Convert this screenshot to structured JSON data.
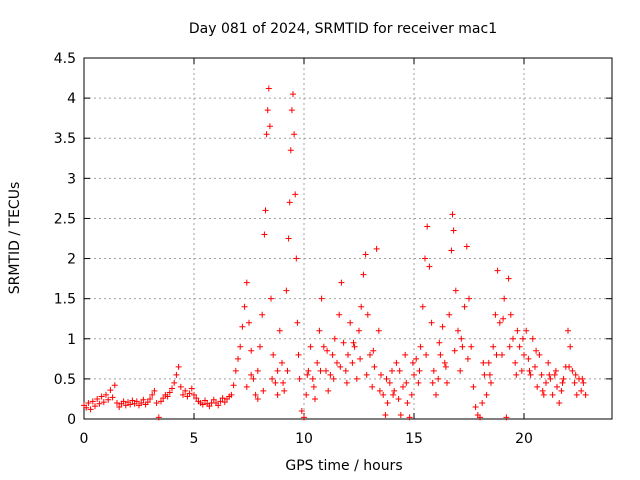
{
  "chart_data": {
    "type": "scatter",
    "title": "Day 081 of 2024, SRMTID for receiver mac1",
    "xlabel": "GPS time / hours",
    "ylabel": "SRMTID / TECUs",
    "xlim": [
      0,
      24
    ],
    "ylim": [
      0,
      4.5
    ],
    "x_ticks": [
      0,
      5,
      10,
      15,
      20
    ],
    "x_tick_labels": [
      "0",
      "5",
      "10",
      "15",
      "20"
    ],
    "y_ticks": [
      0,
      0.5,
      1,
      1.5,
      2,
      2.5,
      3,
      3.5,
      4,
      4.5
    ],
    "y_tick_labels": [
      "0",
      "0.5",
      "1",
      "1.5",
      "2",
      "2.5",
      "3",
      "3.5",
      "4",
      "4.5"
    ],
    "grid": true,
    "marker": "+",
    "series": [
      {
        "name": "SRMTID",
        "color": "#ff0000",
        "points": [
          [
            0.0,
            0.17
          ],
          [
            0.1,
            0.14
          ],
          [
            0.2,
            0.2
          ],
          [
            0.3,
            0.12
          ],
          [
            0.4,
            0.22
          ],
          [
            0.5,
            0.16
          ],
          [
            0.6,
            0.25
          ],
          [
            0.7,
            0.19
          ],
          [
            0.8,
            0.28
          ],
          [
            0.9,
            0.21
          ],
          [
            1.0,
            0.3
          ],
          [
            1.1,
            0.24
          ],
          [
            1.2,
            0.36
          ],
          [
            1.3,
            0.27
          ],
          [
            1.4,
            0.42
          ],
          [
            1.5,
            0.2
          ],
          [
            1.6,
            0.15
          ],
          [
            1.7,
            0.19
          ],
          [
            1.8,
            0.22
          ],
          [
            1.9,
            0.17
          ],
          [
            2.0,
            0.21
          ],
          [
            2.1,
            0.18
          ],
          [
            2.2,
            0.23
          ],
          [
            2.3,
            0.19
          ],
          [
            2.4,
            0.22
          ],
          [
            2.5,
            0.17
          ],
          [
            2.6,
            0.2
          ],
          [
            2.7,
            0.24
          ],
          [
            2.8,
            0.18
          ],
          [
            2.9,
            0.21
          ],
          [
            3.0,
            0.25
          ],
          [
            3.1,
            0.3
          ],
          [
            3.2,
            0.35
          ],
          [
            3.3,
            0.2
          ],
          [
            3.4,
            0.02
          ],
          [
            3.5,
            0.22
          ],
          [
            3.6,
            0.26
          ],
          [
            3.7,
            0.3
          ],
          [
            3.8,
            0.28
          ],
          [
            3.9,
            0.33
          ],
          [
            4.0,
            0.38
          ],
          [
            4.1,
            0.45
          ],
          [
            4.2,
            0.55
          ],
          [
            4.3,
            0.65
          ],
          [
            4.4,
            0.4
          ],
          [
            4.5,
            0.3
          ],
          [
            4.6,
            0.35
          ],
          [
            4.7,
            0.28
          ],
          [
            4.8,
            0.32
          ],
          [
            4.9,
            0.38
          ],
          [
            5.0,
            0.3
          ],
          [
            5.1,
            0.26
          ],
          [
            5.2,
            0.22
          ],
          [
            5.3,
            0.2
          ],
          [
            5.4,
            0.18
          ],
          [
            5.5,
            0.23
          ],
          [
            5.6,
            0.19
          ],
          [
            5.7,
            0.16
          ],
          [
            5.8,
            0.2
          ],
          [
            5.9,
            0.24
          ],
          [
            6.0,
            0.2
          ],
          [
            6.1,
            0.17
          ],
          [
            6.2,
            0.22
          ],
          [
            6.3,
            0.26
          ],
          [
            6.4,
            0.21
          ],
          [
            6.5,
            0.25
          ],
          [
            6.6,
            0.28
          ],
          [
            6.7,
            0.3
          ],
          [
            6.8,
            0.42
          ],
          [
            6.9,
            0.6
          ],
          [
            7.0,
            0.75
          ],
          [
            7.1,
            0.9
          ],
          [
            7.2,
            1.15
          ],
          [
            7.3,
            1.4
          ],
          [
            7.4,
            1.7
          ],
          [
            7.5,
            1.2
          ],
          [
            7.6,
            0.85
          ],
          [
            7.7,
            0.5
          ],
          [
            7.8,
            0.3
          ],
          [
            7.9,
            0.6
          ],
          [
            8.0,
            0.9
          ],
          [
            8.1,
            1.3
          ],
          [
            8.2,
            2.3
          ],
          [
            8.25,
            2.6
          ],
          [
            8.3,
            3.55
          ],
          [
            8.35,
            3.85
          ],
          [
            8.4,
            4.12
          ],
          [
            8.45,
            3.65
          ],
          [
            8.5,
            1.5
          ],
          [
            8.6,
            0.8
          ],
          [
            8.7,
            0.45
          ],
          [
            8.8,
            0.6
          ],
          [
            8.9,
            1.1
          ],
          [
            9.0,
            0.7
          ],
          [
            9.1,
            0.35
          ],
          [
            9.2,
            1.6
          ],
          [
            9.3,
            2.25
          ],
          [
            9.35,
            2.7
          ],
          [
            9.4,
            3.35
          ],
          [
            9.45,
            3.85
          ],
          [
            9.5,
            4.05
          ],
          [
            9.55,
            3.55
          ],
          [
            9.6,
            2.8
          ],
          [
            9.65,
            2.0
          ],
          [
            9.7,
            1.2
          ],
          [
            9.8,
            0.5
          ],
          [
            9.9,
            0.1
          ],
          [
            10.0,
            0.02
          ],
          [
            10.1,
            0.3
          ],
          [
            10.2,
            0.6
          ],
          [
            10.3,
            0.9
          ],
          [
            10.4,
            0.5
          ],
          [
            10.5,
            0.25
          ],
          [
            10.6,
            0.7
          ],
          [
            10.7,
            1.1
          ],
          [
            10.8,
            1.5
          ],
          [
            10.9,
            0.9
          ],
          [
            11.0,
            0.6
          ],
          [
            11.1,
            0.35
          ],
          [
            11.2,
            0.55
          ],
          [
            11.3,
            0.8
          ],
          [
            11.4,
            1.0
          ],
          [
            11.5,
            0.7
          ],
          [
            11.6,
            1.3
          ],
          [
            11.7,
            1.7
          ],
          [
            11.8,
            0.95
          ],
          [
            11.9,
            0.6
          ],
          [
            12.0,
            0.8
          ],
          [
            12.1,
            1.2
          ],
          [
            12.2,
            0.7
          ],
          [
            12.3,
            0.9
          ],
          [
            12.4,
            0.5
          ],
          [
            12.5,
            1.1
          ],
          [
            12.6,
            1.4
          ],
          [
            12.7,
            1.8
          ],
          [
            12.8,
            2.05
          ],
          [
            12.9,
            1.3
          ],
          [
            13.0,
            0.8
          ],
          [
            13.1,
            0.4
          ],
          [
            13.2,
            0.65
          ],
          [
            13.3,
            2.12
          ],
          [
            13.4,
            1.1
          ],
          [
            13.5,
            0.55
          ],
          [
            13.6,
            0.3
          ],
          [
            13.7,
            0.05
          ],
          [
            13.8,
            0.2
          ],
          [
            13.9,
            0.45
          ],
          [
            14.0,
            0.6
          ],
          [
            14.1,
            0.35
          ],
          [
            14.2,
            0.7
          ],
          [
            14.3,
            0.25
          ],
          [
            14.4,
            0.05
          ],
          [
            14.5,
            0.4
          ],
          [
            14.6,
            0.8
          ],
          [
            14.7,
            0.2
          ],
          [
            14.8,
            0.02
          ],
          [
            14.9,
            0.3
          ],
          [
            15.0,
            0.55
          ],
          [
            15.1,
            0.75
          ],
          [
            15.2,
            0.45
          ],
          [
            15.3,
            0.9
          ],
          [
            15.4,
            1.4
          ],
          [
            15.5,
            2.0
          ],
          [
            15.6,
            2.4
          ],
          [
            15.7,
            1.9
          ],
          [
            15.8,
            1.2
          ],
          [
            15.9,
            0.6
          ],
          [
            16.0,
            0.3
          ],
          [
            16.1,
            0.5
          ],
          [
            16.2,
            0.8
          ],
          [
            16.3,
            1.15
          ],
          [
            16.4,
            0.7
          ],
          [
            16.5,
            0.45
          ],
          [
            16.6,
            1.3
          ],
          [
            16.7,
            2.1
          ],
          [
            16.75,
            2.55
          ],
          [
            16.8,
            2.35
          ],
          [
            16.9,
            1.6
          ],
          [
            17.0,
            1.1
          ],
          [
            17.1,
            0.6
          ],
          [
            17.2,
            0.9
          ],
          [
            17.3,
            1.4
          ],
          [
            17.4,
            2.15
          ],
          [
            17.5,
            1.5
          ],
          [
            17.6,
            0.9
          ],
          [
            17.7,
            0.4
          ],
          [
            17.8,
            0.15
          ],
          [
            17.9,
            0.05
          ],
          [
            18.0,
            0.02
          ],
          [
            18.1,
            0.2
          ],
          [
            18.2,
            0.55
          ],
          [
            18.3,
            0.3
          ],
          [
            18.4,
            0.7
          ],
          [
            18.5,
            0.45
          ],
          [
            18.6,
            0.9
          ],
          [
            18.7,
            1.3
          ],
          [
            18.8,
            1.85
          ],
          [
            18.9,
            1.2
          ],
          [
            19.0,
            0.8
          ],
          [
            19.1,
            1.5
          ],
          [
            19.2,
            0.02
          ],
          [
            19.3,
            1.75
          ],
          [
            19.4,
            1.3
          ],
          [
            19.5,
            1.0
          ],
          [
            19.6,
            0.7
          ],
          [
            19.7,
            1.1
          ],
          [
            19.8,
            0.9
          ],
          [
            19.9,
            0.6
          ],
          [
            20.0,
            0.8
          ],
          [
            20.1,
            1.1
          ],
          [
            20.2,
            0.75
          ],
          [
            20.3,
            0.55
          ],
          [
            20.4,
            1.0
          ],
          [
            20.5,
            0.65
          ],
          [
            20.6,
            0.4
          ],
          [
            20.7,
            0.8
          ],
          [
            20.8,
            0.55
          ],
          [
            20.9,
            0.3
          ],
          [
            21.0,
            0.45
          ],
          [
            21.1,
            0.7
          ],
          [
            21.2,
            0.5
          ],
          [
            21.3,
            0.3
          ],
          [
            21.4,
            0.55
          ],
          [
            21.5,
            0.4
          ],
          [
            21.6,
            0.2
          ],
          [
            21.7,
            0.35
          ],
          [
            21.8,
            0.5
          ],
          [
            21.9,
            0.65
          ],
          [
            22.0,
            1.1
          ],
          [
            22.1,
            0.9
          ],
          [
            22.2,
            0.6
          ],
          [
            22.3,
            0.45
          ],
          [
            22.4,
            0.3
          ],
          [
            22.5,
            0.5
          ],
          [
            22.6,
            0.35
          ],
          [
            22.7,
            0.45
          ],
          [
            22.8,
            0.3
          ],
          [
            7.4,
            0.4
          ],
          [
            7.6,
            0.55
          ],
          [
            7.9,
            0.25
          ],
          [
            8.15,
            0.35
          ],
          [
            8.55,
            0.5
          ],
          [
            8.8,
            0.3
          ],
          [
            9.05,
            0.45
          ],
          [
            9.25,
            0.6
          ],
          [
            9.75,
            0.8
          ],
          [
            10.15,
            0.55
          ],
          [
            10.45,
            0.4
          ],
          [
            10.75,
            0.6
          ],
          [
            11.05,
            0.85
          ],
          [
            11.35,
            0.5
          ],
          [
            11.65,
            0.65
          ],
          [
            11.95,
            0.45
          ],
          [
            12.25,
            0.95
          ],
          [
            12.55,
            0.75
          ],
          [
            12.85,
            0.55
          ],
          [
            13.15,
            0.85
          ],
          [
            13.45,
            0.35
          ],
          [
            13.75,
            0.5
          ],
          [
            14.05,
            0.3
          ],
          [
            14.35,
            0.6
          ],
          [
            14.65,
            0.45
          ],
          [
            14.95,
            0.7
          ],
          [
            15.25,
            0.6
          ],
          [
            15.55,
            0.8
          ],
          [
            15.85,
            0.45
          ],
          [
            16.15,
            0.95
          ],
          [
            16.45,
            0.65
          ],
          [
            16.85,
            0.85
          ],
          [
            17.15,
            1.0
          ],
          [
            17.45,
            0.75
          ],
          [
            18.15,
            0.7
          ],
          [
            18.45,
            0.55
          ],
          [
            18.75,
            0.8
          ],
          [
            19.05,
            1.25
          ],
          [
            19.35,
            0.9
          ],
          [
            19.65,
            0.55
          ],
          [
            19.95,
            1.0
          ],
          [
            20.25,
            0.6
          ],
          [
            20.55,
            0.85
          ],
          [
            20.85,
            0.35
          ],
          [
            21.15,
            0.55
          ],
          [
            21.45,
            0.6
          ],
          [
            21.75,
            0.45
          ],
          [
            22.05,
            0.65
          ],
          [
            22.35,
            0.55
          ],
          [
            22.65,
            0.5
          ]
        ]
      }
    ]
  }
}
